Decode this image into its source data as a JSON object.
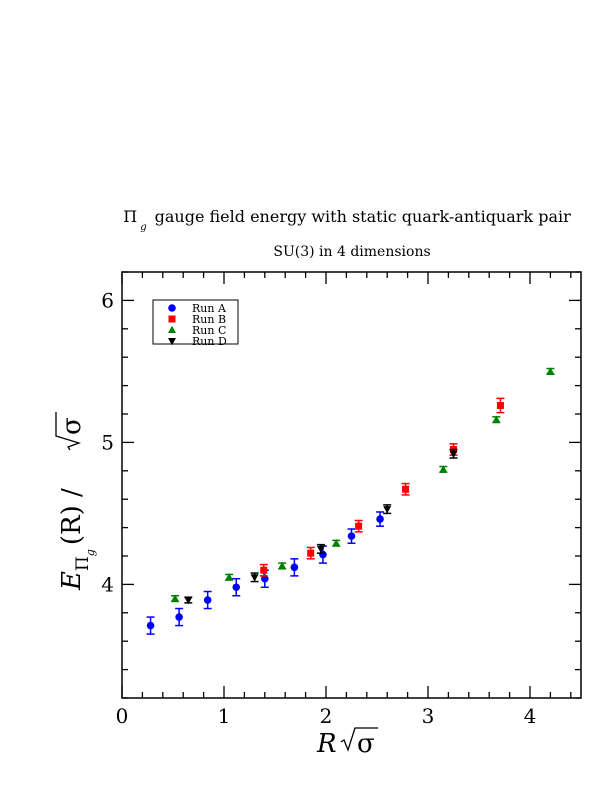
{
  "chart_data": {
    "type": "scatter",
    "title_symbol": "Π",
    "title_subscript": "g",
    "title_text": "gauge field energy with static quark-antiquark pair",
    "subtitle": "SU(3) in 4 dimensions",
    "xlabel_var": "R",
    "xlabel_rest": "σ",
    "ylabel_var": "E",
    "ylabel_sub": "Π",
    "ylabel_subsub": "g",
    "ylabel_mid": "(R) /",
    "ylabel_rest": "σ",
    "xlim": [
      0,
      4.5
    ],
    "ylim": [
      3.2,
      6.2
    ],
    "xticks": [
      0,
      1,
      2,
      3,
      4
    ],
    "yticks": [
      4,
      5,
      6
    ],
    "xtick_labels": [
      "0",
      "1",
      "2",
      "3",
      "4"
    ],
    "ytick_labels": [
      "4",
      "5",
      "6"
    ],
    "legend_position": "top-left",
    "series": [
      {
        "name": "Run A",
        "color": "#0000ff",
        "marker": "circle",
        "points": [
          {
            "x": 0.28,
            "y": 3.71,
            "err": 0.06
          },
          {
            "x": 0.56,
            "y": 3.77,
            "err": 0.06
          },
          {
            "x": 0.84,
            "y": 3.89,
            "err": 0.06
          },
          {
            "x": 1.12,
            "y": 3.98,
            "err": 0.06
          },
          {
            "x": 1.4,
            "y": 4.04,
            "err": 0.06
          },
          {
            "x": 1.69,
            "y": 4.12,
            "err": 0.06
          },
          {
            "x": 1.97,
            "y": 4.21,
            "err": 0.06
          },
          {
            "x": 2.25,
            "y": 4.34,
            "err": 0.05
          },
          {
            "x": 2.53,
            "y": 4.46,
            "err": 0.05
          }
        ]
      },
      {
        "name": "Run B",
        "color": "#ff0000",
        "marker": "square",
        "points": [
          {
            "x": 1.39,
            "y": 4.1,
            "err": 0.04
          },
          {
            "x": 1.85,
            "y": 4.22,
            "err": 0.04
          },
          {
            "x": 2.32,
            "y": 4.41,
            "err": 0.04
          },
          {
            "x": 2.78,
            "y": 4.67,
            "err": 0.04
          },
          {
            "x": 3.25,
            "y": 4.95,
            "err": 0.04
          },
          {
            "x": 3.71,
            "y": 5.26,
            "err": 0.05
          }
        ]
      },
      {
        "name": "Run C",
        "color": "#008000",
        "marker": "triangle-up",
        "points": [
          {
            "x": 0.52,
            "y": 3.9,
            "err": 0.02
          },
          {
            "x": 1.05,
            "y": 4.05,
            "err": 0.02
          },
          {
            "x": 1.57,
            "y": 4.13,
            "err": 0.02
          },
          {
            "x": 2.1,
            "y": 4.29,
            "err": 0.02
          },
          {
            "x": 3.15,
            "y": 4.81,
            "err": 0.02
          },
          {
            "x": 3.67,
            "y": 5.16,
            "err": 0.02
          },
          {
            "x": 4.2,
            "y": 5.5,
            "err": 0.02
          }
        ]
      },
      {
        "name": "Run D",
        "color": "#000000",
        "marker": "triangle-down",
        "points": [
          {
            "x": 0.65,
            "y": 3.89,
            "err": 0.02
          },
          {
            "x": 1.3,
            "y": 4.05,
            "err": 0.03
          },
          {
            "x": 1.95,
            "y": 4.25,
            "err": 0.03
          },
          {
            "x": 2.6,
            "y": 4.53,
            "err": 0.03
          },
          {
            "x": 3.25,
            "y": 4.92,
            "err": 0.03
          }
        ]
      }
    ]
  }
}
